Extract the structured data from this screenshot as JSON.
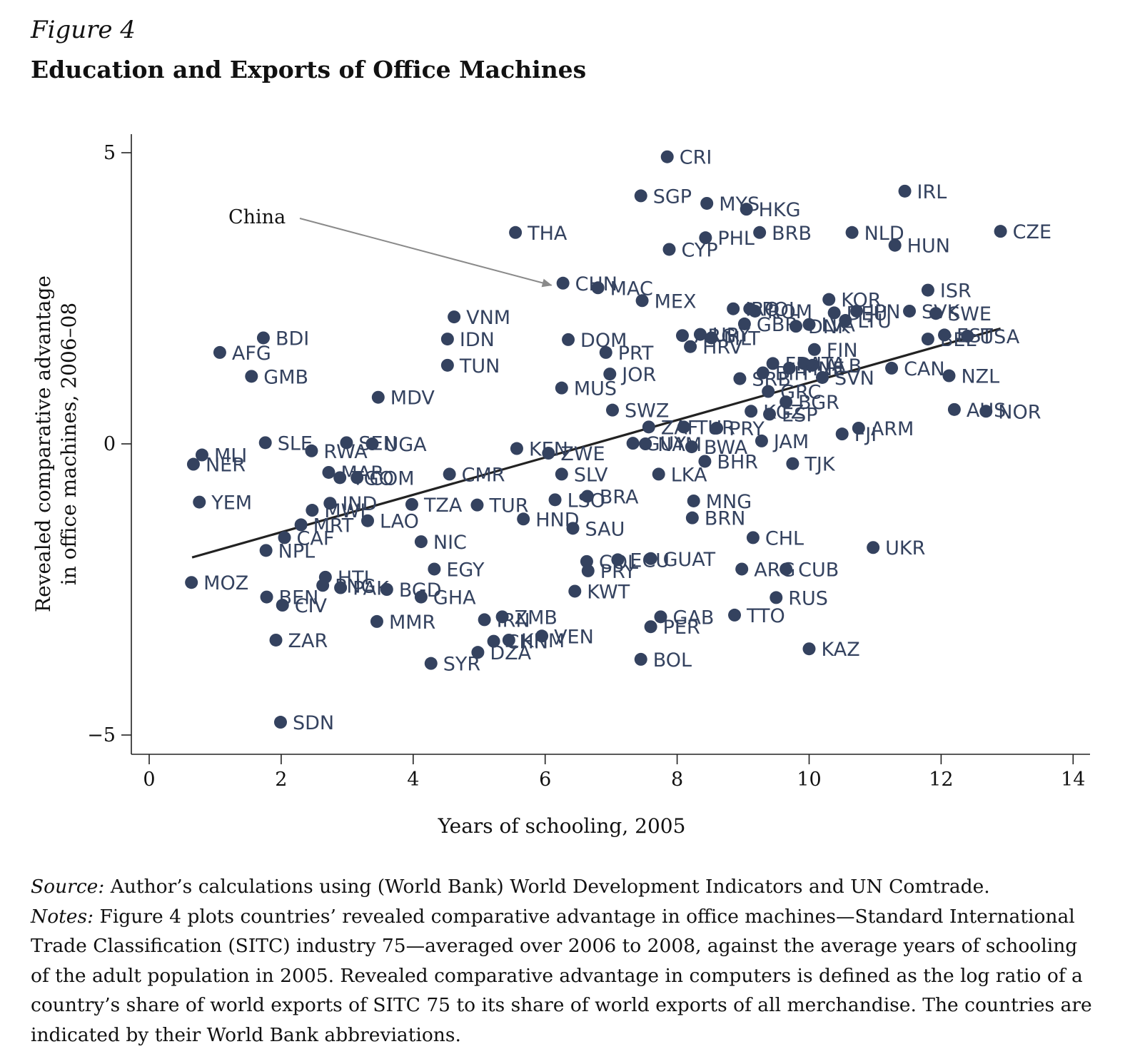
{
  "figure": {
    "label": "Figure 4",
    "title": "Education and Exports of Office Machines"
  },
  "chart_data": {
    "type": "scatter",
    "xlabel": "Years of schooling, 2005",
    "ylabel_lines": [
      "Revealed comparative advantage",
      "in office machines, 2006–08"
    ],
    "xlim": [
      0,
      14
    ],
    "ylim": [
      -5,
      5
    ],
    "xticks": [
      0,
      2,
      4,
      6,
      8,
      10,
      12,
      14
    ],
    "yticks": [
      {
        "value": -5,
        "label": "−5"
      },
      {
        "value": 0,
        "label": "0"
      },
      {
        "value": 5,
        "label": "5"
      }
    ],
    "fit_line": {
      "x": [
        0.65,
        12.9
      ],
      "y": [
        -1.95,
        1.98
      ]
    },
    "annotation": {
      "text": "China",
      "target": "CHN"
    },
    "colors": {
      "points": "#34425f",
      "labels": "#34425f",
      "fit_line": "#222222",
      "arrow": "#8a8a8a"
    },
    "points": [
      {
        "label": "CRI",
        "x": 7.85,
        "y": 4.93
      },
      {
        "label": "SGP",
        "x": 7.45,
        "y": 4.26
      },
      {
        "label": "MYS",
        "x": 8.45,
        "y": 4.13
      },
      {
        "label": "HKG",
        "x": 9.05,
        "y": 4.03
      },
      {
        "label": "IRL",
        "x": 11.45,
        "y": 4.34
      },
      {
        "label": "THA",
        "x": 5.55,
        "y": 3.63
      },
      {
        "label": "PHL",
        "x": 8.43,
        "y": 3.54
      },
      {
        "label": "BRB",
        "x": 9.25,
        "y": 3.63
      },
      {
        "label": "NLD",
        "x": 10.65,
        "y": 3.63
      },
      {
        "label": "CZE",
        "x": 12.9,
        "y": 3.65
      },
      {
        "label": "CYP",
        "x": 7.88,
        "y": 3.34
      },
      {
        "label": "HUN",
        "x": 11.3,
        "y": 3.41
      },
      {
        "label": "CHN",
        "x": 6.27,
        "y": 2.76
      },
      {
        "label": "MAC",
        "x": 6.8,
        "y": 2.68
      },
      {
        "label": "ISR",
        "x": 11.8,
        "y": 2.64
      },
      {
        "label": "MEX",
        "x": 7.47,
        "y": 2.46
      },
      {
        "label": "KOR",
        "x": 10.3,
        "y": 2.48
      },
      {
        "label": "VNM",
        "x": 4.62,
        "y": 2.18
      },
      {
        "label": "IRQ",
        "x": 8.85,
        "y": 2.32
      },
      {
        "label": "POL",
        "x": 9.1,
        "y": 2.32
      },
      {
        "label": "ROM",
        "x": 9.18,
        "y": 2.28
      },
      {
        "label": "DEU",
        "x": 10.38,
        "y": 2.25
      },
      {
        "label": "JPN",
        "x": 10.72,
        "y": 2.28
      },
      {
        "label": "SVK",
        "x": 11.52,
        "y": 2.28
      },
      {
        "label": "SWE",
        "x": 11.92,
        "y": 2.24
      },
      {
        "label": "GBR",
        "x": 9.02,
        "y": 2.06
      },
      {
        "label": "LTU",
        "x": 10.55,
        "y": 2.12
      },
      {
        "label": "DNK",
        "x": 9.8,
        "y": 2.02
      },
      {
        "label": "LVA",
        "x": 10.0,
        "y": 2.05
      },
      {
        "label": "BDI",
        "x": 1.73,
        "y": 1.82
      },
      {
        "label": "IDN",
        "x": 4.52,
        "y": 1.8
      },
      {
        "label": "DOM",
        "x": 6.35,
        "y": 1.79
      },
      {
        "label": "ARG",
        "x": 8.08,
        "y": 1.86
      },
      {
        "label": "URY",
        "x": 8.35,
        "y": 1.88
      },
      {
        "label": "MLT",
        "x": 8.52,
        "y": 1.82
      },
      {
        "label": "HRV",
        "x": 8.2,
        "y": 1.67
      },
      {
        "label": "EST",
        "x": 12.05,
        "y": 1.87
      },
      {
        "label": "USA",
        "x": 12.4,
        "y": 1.85
      },
      {
        "label": "BEL",
        "x": 11.8,
        "y": 1.8
      },
      {
        "label": "AFG",
        "x": 1.07,
        "y": 1.57
      },
      {
        "label": "PRT",
        "x": 6.92,
        "y": 1.57
      },
      {
        "label": "FIN",
        "x": 10.08,
        "y": 1.62
      },
      {
        "label": "TUN",
        "x": 4.52,
        "y": 1.35
      },
      {
        "label": "GMB",
        "x": 1.55,
        "y": 1.16
      },
      {
        "label": "JOR",
        "x": 6.98,
        "y": 1.2
      },
      {
        "label": "FRA",
        "x": 9.45,
        "y": 1.38
      },
      {
        "label": "ITA",
        "x": 9.92,
        "y": 1.38
      },
      {
        "label": "ALB",
        "x": 10.05,
        "y": 1.35
      },
      {
        "label": "CAN",
        "x": 11.25,
        "y": 1.3
      },
      {
        "label": "SRB",
        "x": 8.95,
        "y": 1.12
      },
      {
        "label": "BIH",
        "x": 9.3,
        "y": 1.22
      },
      {
        "label": "MNE",
        "x": 9.7,
        "y": 1.3
      },
      {
        "label": "SVN",
        "x": 10.2,
        "y": 1.14
      },
      {
        "label": "NZL",
        "x": 12.12,
        "y": 1.17
      },
      {
        "label": "MUS",
        "x": 6.25,
        "y": 0.96
      },
      {
        "label": "GRC",
        "x": 9.38,
        "y": 0.9
      },
      {
        "label": "MDV",
        "x": 3.47,
        "y": 0.8
      },
      {
        "label": "BGR",
        "x": 9.65,
        "y": 0.72
      },
      {
        "label": "SWZ",
        "x": 7.02,
        "y": 0.58
      },
      {
        "label": "KGZ",
        "x": 9.12,
        "y": 0.56
      },
      {
        "label": "ESP",
        "x": 9.4,
        "y": 0.51
      },
      {
        "label": "AUS",
        "x": 12.2,
        "y": 0.59
      },
      {
        "label": "NOR",
        "x": 12.68,
        "y": 0.56
      },
      {
        "label": "ZAF",
        "x": 7.57,
        "y": 0.29
      },
      {
        "label": "TUR",
        "x": 8.1,
        "y": 0.29
      },
      {
        "label": "PRY",
        "x": 8.6,
        "y": 0.27
      },
      {
        "label": "ARM",
        "x": 10.75,
        "y": 0.27
      },
      {
        "label": "FJI",
        "x": 10.5,
        "y": 0.17
      },
      {
        "label": "JAM",
        "x": 9.28,
        "y": 0.05
      },
      {
        "label": "SLE",
        "x": 1.76,
        "y": 0.02
      },
      {
        "label": "SEN",
        "x": 2.99,
        "y": 0.02
      },
      {
        "label": "UGA",
        "x": 3.38,
        "y": 0.0
      },
      {
        "label": "GUY",
        "x": 7.33,
        "y": 0.01
      },
      {
        "label": "NAM",
        "x": 7.52,
        "y": 0.0
      },
      {
        "label": "BWA",
        "x": 8.22,
        "y": -0.05
      },
      {
        "label": "RWA",
        "x": 2.46,
        "y": -0.12
      },
      {
        "label": "KEN",
        "x": 5.57,
        "y": -0.08
      },
      {
        "label": "ZWE",
        "x": 6.05,
        "y": -0.16
      },
      {
        "label": "MLI",
        "x": 0.8,
        "y": -0.19
      },
      {
        "label": "NER",
        "x": 0.67,
        "y": -0.35
      },
      {
        "label": "BHR",
        "x": 8.42,
        "y": -0.3
      },
      {
        "label": "TJK",
        "x": 9.75,
        "y": -0.34
      },
      {
        "label": "MAR",
        "x": 2.72,
        "y": -0.49
      },
      {
        "label": "CMR",
        "x": 4.55,
        "y": -0.52
      },
      {
        "label": "SLV",
        "x": 6.25,
        "y": -0.52
      },
      {
        "label": "LKA",
        "x": 7.72,
        "y": -0.52
      },
      {
        "label": "TGO",
        "x": 2.89,
        "y": -0.58
      },
      {
        "label": "COM",
        "x": 3.15,
        "y": -0.58
      },
      {
        "label": "BRA",
        "x": 6.64,
        "y": -0.9
      },
      {
        "label": "LSO",
        "x": 6.15,
        "y": -0.96
      },
      {
        "label": "MNG",
        "x": 8.25,
        "y": -0.98
      },
      {
        "label": "YEM",
        "x": 0.76,
        "y": -1.0
      },
      {
        "label": "IND",
        "x": 2.74,
        "y": -1.02
      },
      {
        "label": "TZA",
        "x": 3.98,
        "y": -1.04
      },
      {
        "label": "TUR",
        "x": 4.97,
        "y": -1.05
      },
      {
        "label": "MWI",
        "x": 2.47,
        "y": -1.14
      },
      {
        "label": "LAO",
        "x": 3.31,
        "y": -1.32
      },
      {
        "label": "HND",
        "x": 5.67,
        "y": -1.29
      },
      {
        "label": "BRN",
        "x": 8.23,
        "y": -1.27
      },
      {
        "label": "MRT",
        "x": 2.3,
        "y": -1.39
      },
      {
        "label": "SAU",
        "x": 6.42,
        "y": -1.45
      },
      {
        "label": "CAF",
        "x": 2.05,
        "y": -1.61
      },
      {
        "label": "CHL",
        "x": 9.15,
        "y": -1.61
      },
      {
        "label": "NIC",
        "x": 4.12,
        "y": -1.68
      },
      {
        "label": "NPL",
        "x": 1.77,
        "y": -1.83
      },
      {
        "label": "UKR",
        "x": 10.97,
        "y": -1.78
      },
      {
        "label": "COL",
        "x": 6.63,
        "y": -2.02
      },
      {
        "label": "ECU",
        "x": 7.1,
        "y": -1.99
      },
      {
        "label": "GUAT",
        "x": 7.6,
        "y": -1.97
      },
      {
        "label": "EGY",
        "x": 4.32,
        "y": -2.15
      },
      {
        "label": "PRY",
        "x": 6.65,
        "y": -2.18
      },
      {
        "label": "ARG",
        "x": 8.98,
        "y": -2.15
      },
      {
        "label": "CUB",
        "x": 9.65,
        "y": -2.15
      },
      {
        "label": "MOZ",
        "x": 0.64,
        "y": -2.38
      },
      {
        "label": "HTI",
        "x": 2.67,
        "y": -2.29
      },
      {
        "label": "PNG",
        "x": 2.63,
        "y": -2.43
      },
      {
        "label": "PAK",
        "x": 2.9,
        "y": -2.47
      },
      {
        "label": "BGD",
        "x": 3.6,
        "y": -2.5
      },
      {
        "label": "KWT",
        "x": 6.45,
        "y": -2.53
      },
      {
        "label": "BEN",
        "x": 1.78,
        "y": -2.63
      },
      {
        "label": "GHA",
        "x": 4.12,
        "y": -2.63
      },
      {
        "label": "RUS",
        "x": 9.5,
        "y": -2.64
      },
      {
        "label": "CIV",
        "x": 2.02,
        "y": -2.77
      },
      {
        "label": "IRN",
        "x": 5.08,
        "y": -3.02
      },
      {
        "label": "ZMB",
        "x": 5.35,
        "y": -2.97
      },
      {
        "label": "GAB",
        "x": 7.75,
        "y": -2.97
      },
      {
        "label": "TTO",
        "x": 8.87,
        "y": -2.94
      },
      {
        "label": "MMR",
        "x": 3.45,
        "y": -3.05
      },
      {
        "label": "PER",
        "x": 7.6,
        "y": -3.14
      },
      {
        "label": "VEN",
        "x": 5.95,
        "y": -3.3
      },
      {
        "label": "CHN",
        "x": 5.22,
        "y": -3.39
      },
      {
        "label": "KHM",
        "x": 5.45,
        "y": -3.37
      },
      {
        "label": "ZAR",
        "x": 1.92,
        "y": -3.37
      },
      {
        "label": "DZA",
        "x": 4.98,
        "y": -3.58
      },
      {
        "label": "KAZ",
        "x": 10.0,
        "y": -3.52
      },
      {
        "label": "BOL",
        "x": 7.45,
        "y": -3.7
      },
      {
        "label": "SYR",
        "x": 4.27,
        "y": -3.77
      },
      {
        "label": "SDN",
        "x": 1.99,
        "y": -4.78
      }
    ]
  },
  "notes": {
    "source_label": "Source:",
    "source_text": " Author’s calculations using (World Bank) World Development Indicators and UN Comtrade.",
    "notes_label": "Notes:",
    "notes_text": " Figure 4 plots countries’ revealed comparative advantage in office machines—Standard International Trade Classification (SITC) industry 75—averaged over 2006 to 2008, against the average years of schooling of the adult population in 2005. Revealed comparative advantage in computers is defined as the log ratio of a country’s share of world exports of SITC 75 to its share of world exports of all merchandise. The countries are indicated by their World Bank abbreviations."
  }
}
